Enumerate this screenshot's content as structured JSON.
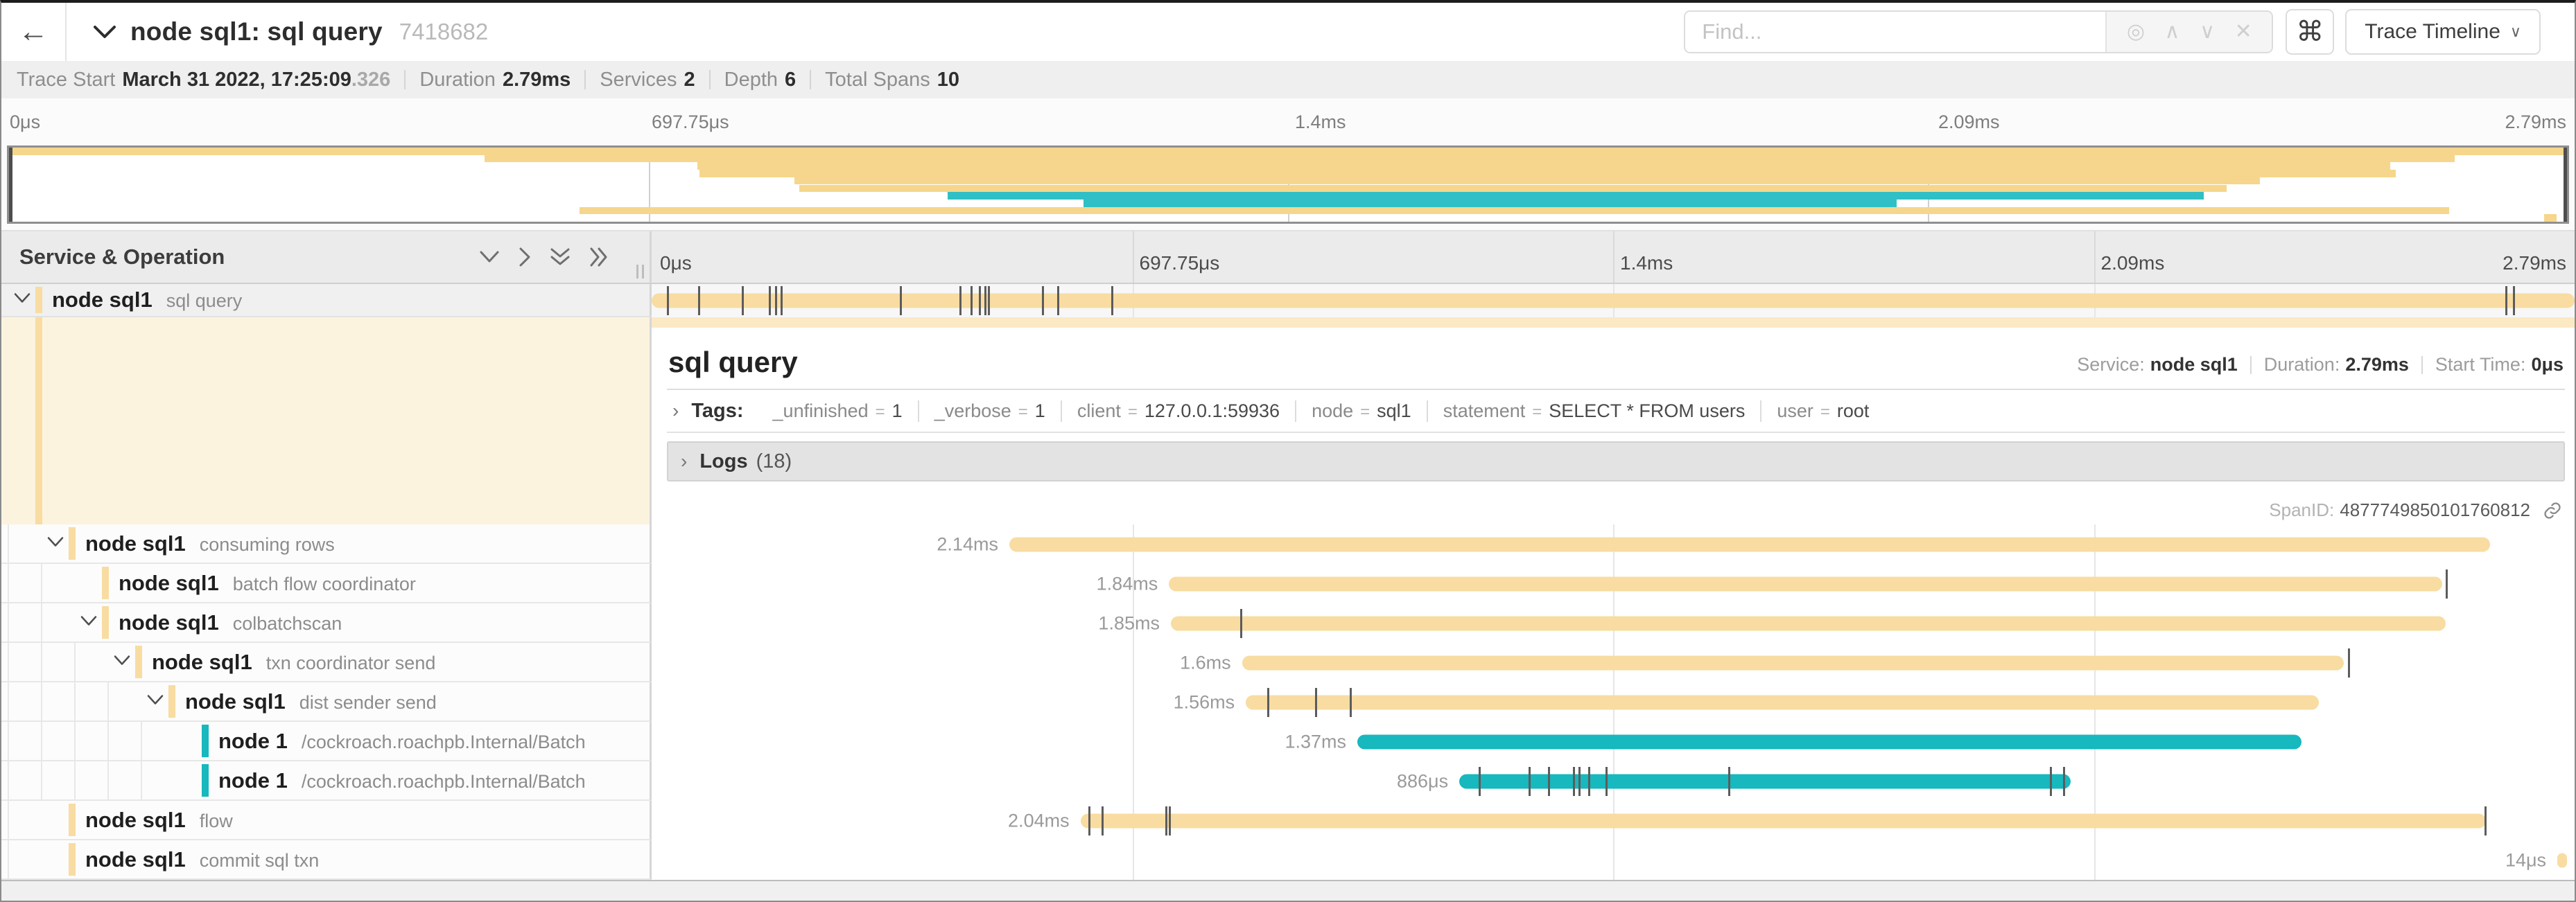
{
  "header": {
    "back": "←",
    "title": "node sql1: sql query",
    "trace_id": "7418682",
    "find_placeholder": "Find...",
    "shortcut_button": "⌘",
    "view_button": "Trace Timeline"
  },
  "info": {
    "trace_start_label": "Trace Start",
    "trace_start_value": "March 31 2022, 17:25:09",
    "trace_start_fraction": ".326",
    "duration_label": "Duration",
    "duration_value": "2.79ms",
    "services_label": "Services",
    "services_value": "2",
    "depth_label": "Depth",
    "depth_value": "6",
    "total_spans_label": "Total Spans",
    "total_spans_value": "10"
  },
  "axis_ticks": [
    "0μs",
    "697.75μs",
    "1.4ms",
    "2.09ms",
    "2.79ms"
  ],
  "left_header": {
    "title": "Service & Operation"
  },
  "colors": {
    "tan": "#F8DCA1",
    "teal": "#17B8BE",
    "tan_minimap": "#F5D68C",
    "teal_minimap": "#2FBFC6",
    "tan_strip": "#FBE9C4"
  },
  "spans": [
    {
      "service": "node sql1",
      "operation": "sql query",
      "depth": 0,
      "expander": "down",
      "color": "tan",
      "duration_label": "",
      "start": 0,
      "end": 100,
      "ticks": [
        0.8,
        2.4,
        4.7,
        6.1,
        6.4,
        6.7,
        12.9,
        16.0,
        16.6,
        17.0,
        17.3,
        17.5,
        20.3,
        21.1,
        23.9,
        96.4,
        96.8
      ],
      "selected": true
    },
    {
      "service": "node sql1",
      "operation": "consuming rows",
      "depth": 1,
      "expander": "down",
      "color": "tan",
      "duration_label": "2.14ms",
      "start": 18.6,
      "end": 95.6,
      "ticks": []
    },
    {
      "service": "node sql1",
      "operation": "batch flow coordinator",
      "depth": 2,
      "expander": "none",
      "color": "tan",
      "duration_label": "1.84ms",
      "start": 26.9,
      "end": 93.1,
      "ticks": [
        93.3
      ]
    },
    {
      "service": "node sql1",
      "operation": "colbatchscan",
      "depth": 2,
      "expander": "down",
      "color": "tan",
      "duration_label": "1.85ms",
      "start": 27.0,
      "end": 93.3,
      "ticks": [
        30.6
      ]
    },
    {
      "service": "node sql1",
      "operation": "txn coordinator send",
      "depth": 3,
      "expander": "down",
      "color": "tan",
      "duration_label": "1.6ms",
      "start": 30.7,
      "end": 88.0,
      "ticks": [
        88.2
      ]
    },
    {
      "service": "node sql1",
      "operation": "dist sender send",
      "depth": 4,
      "expander": "down",
      "color": "tan",
      "duration_label": "1.56ms",
      "start": 30.9,
      "end": 86.7,
      "ticks": [
        32.0,
        34.5,
        36.3
      ]
    },
    {
      "service": "node 1",
      "operation": "/cockroach.roachpb.Internal/Batch",
      "depth": 5,
      "expander": "none",
      "color": "teal",
      "duration_label": "1.37ms",
      "start": 36.7,
      "end": 85.8,
      "ticks": []
    },
    {
      "service": "node 1",
      "operation": "/cockroach.roachpb.Internal/Batch",
      "depth": 5,
      "expander": "none",
      "color": "teal",
      "duration_label": "886μs",
      "start": 42.0,
      "end": 73.8,
      "ticks": [
        43.0,
        45.6,
        46.6,
        47.9,
        48.2,
        48.7,
        49.6,
        56.0,
        72.7,
        73.4
      ]
    },
    {
      "service": "node sql1",
      "operation": "flow",
      "depth": 1,
      "expander": "none",
      "color": "tan",
      "duration_label": "2.04ms",
      "start": 22.3,
      "end": 95.4,
      "ticks": [
        22.7,
        23.4,
        26.7,
        26.9,
        95.3
      ]
    },
    {
      "service": "node sql1",
      "operation": "commit sql txn",
      "depth": 1,
      "expander": "none",
      "color": "tan",
      "duration_label": "14μs",
      "start": 99.1,
      "end": 99.6,
      "ticks": []
    }
  ],
  "detail": {
    "title": "sql query",
    "service_label": "Service:",
    "service_value": "node sql1",
    "duration_label": "Duration:",
    "duration_value": "2.79ms",
    "start_time_label": "Start Time:",
    "start_time_value": "0μs",
    "tags_label": "Tags:",
    "tags": [
      {
        "key": "_unfinished",
        "value": "1"
      },
      {
        "key": "_verbose",
        "value": "1"
      },
      {
        "key": "client",
        "value": "127.0.0.1:59936"
      },
      {
        "key": "node",
        "value": "sql1"
      },
      {
        "key": "statement",
        "value": "SELECT * FROM users"
      },
      {
        "key": "user",
        "value": "root"
      }
    ],
    "logs_label": "Logs",
    "logs_count": "(18)",
    "span_id_label": "SpanID:",
    "span_id": "4877749850101760812"
  }
}
